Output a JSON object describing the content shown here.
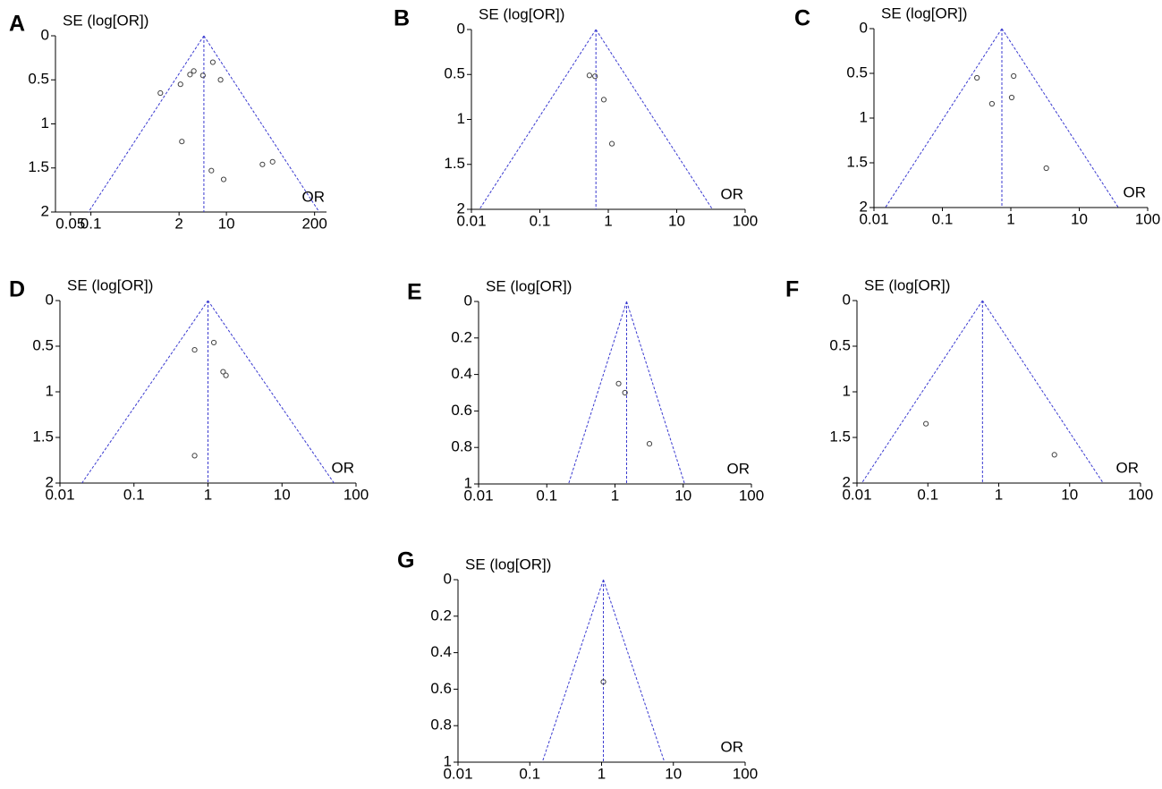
{
  "chart_data": [
    {
      "type": "funnel",
      "label": "A",
      "y_label": "SE (log[OR])",
      "x_label": "OR",
      "x": [
        1.06,
        2.1,
        2.2,
        2.9,
        3.3,
        4.5,
        6.3,
        8.2,
        6.0,
        9.1,
        34,
        48
      ],
      "y": [
        0.65,
        0.55,
        1.2,
        0.44,
        0.4,
        0.45,
        0.3,
        0.5,
        1.53,
        1.63,
        1.46,
        1.43
      ],
      "pooled": 4.65,
      "xlim": [
        0.03,
        300
      ],
      "ylim": [
        0,
        2
      ],
      "xticks": [
        0.05,
        0.1,
        2,
        10,
        200
      ],
      "yticks": [
        0,
        0.5,
        1,
        1.5,
        2
      ],
      "x_scale": "log",
      "y_reversed": true,
      "line_color": "#3a3ad0",
      "marker_color": "#444444"
    },
    {
      "type": "funnel",
      "label": "B",
      "y_label": "SE (log[OR])",
      "x_label": "OR",
      "x": [
        0.53,
        0.64,
        0.86,
        1.13
      ],
      "y": [
        0.51,
        0.52,
        0.78,
        1.27
      ],
      "pooled": 0.66,
      "xlim": [
        0.01,
        100
      ],
      "ylim": [
        0,
        2
      ],
      "xticks": [
        0.01,
        0.1,
        1,
        10,
        100
      ],
      "yticks": [
        0,
        0.5,
        1,
        1.5,
        2
      ],
      "x_scale": "log",
      "y_reversed": true,
      "line_color": "#3a3ad0",
      "marker_color": "#444444"
    },
    {
      "type": "funnel",
      "label": "C",
      "y_label": "SE (log[OR])",
      "x_label": "OR",
      "x": [
        0.32,
        1.1,
        0.53,
        1.03,
        3.3
      ],
      "y": [
        0.55,
        0.53,
        0.84,
        0.77,
        1.56
      ],
      "pooled": 0.74,
      "xlim": [
        0.01,
        100
      ],
      "ylim": [
        0,
        2
      ],
      "xticks": [
        0.01,
        0.1,
        1,
        10,
        100
      ],
      "yticks": [
        0,
        0.5,
        1,
        1.5,
        2
      ],
      "x_scale": "log",
      "y_reversed": true,
      "line_color": "#3a3ad0",
      "marker_color": "#444444"
    },
    {
      "type": "funnel",
      "label": "D",
      "y_label": "SE (log[OR])",
      "x_label": "OR",
      "x": [
        0.66,
        1.2,
        1.6,
        1.75,
        0.66
      ],
      "y": [
        0.54,
        0.46,
        0.78,
        0.82,
        1.7
      ],
      "pooled": 1.0,
      "xlim": [
        0.01,
        100
      ],
      "ylim": [
        0,
        2
      ],
      "xticks": [
        0.01,
        0.1,
        1,
        10,
        100
      ],
      "yticks": [
        0,
        0.5,
        1,
        1.5,
        2
      ],
      "x_scale": "log",
      "y_reversed": true,
      "line_color": "#3a3ad0",
      "marker_color": "#444444"
    },
    {
      "type": "funnel",
      "label": "E",
      "y_label": "SE (log[OR])",
      "x_label": "OR",
      "x": [
        1.13,
        1.4,
        3.2
      ],
      "y": [
        0.45,
        0.5,
        0.78
      ],
      "pooled": 1.48,
      "xlim": [
        0.01,
        100
      ],
      "ylim": [
        0,
        1
      ],
      "xticks": [
        0.01,
        0.1,
        1,
        10,
        100
      ],
      "yticks": [
        0,
        0.2,
        0.4,
        0.6,
        0.8,
        1
      ],
      "x_scale": "log",
      "y_reversed": true,
      "line_color": "#3a3ad0",
      "marker_color": "#444444"
    },
    {
      "type": "funnel",
      "label": "F",
      "y_label": "SE (log[OR])",
      "x_label": "OR",
      "x": [
        0.094,
        6.1
      ],
      "y": [
        1.35,
        1.69
      ],
      "pooled": 0.59,
      "xlim": [
        0.01,
        100
      ],
      "ylim": [
        0,
        2
      ],
      "xticks": [
        0.01,
        0.1,
        1,
        10,
        100
      ],
      "yticks": [
        0,
        0.5,
        1,
        1.5,
        2
      ],
      "x_scale": "log",
      "y_reversed": true,
      "line_color": "#3a3ad0",
      "marker_color": "#444444"
    },
    {
      "type": "funnel",
      "label": "G",
      "y_label": "SE (log[OR])",
      "x_label": "OR",
      "x": [
        1.06
      ],
      "y": [
        0.56
      ],
      "pooled": 1.06,
      "xlim": [
        0.01,
        100
      ],
      "ylim": [
        0,
        1
      ],
      "xticks": [
        0.01,
        0.1,
        1,
        10,
        100
      ],
      "yticks": [
        0,
        0.2,
        0.4,
        0.6,
        0.8,
        1
      ],
      "x_scale": "log",
      "y_reversed": true,
      "line_color": "#3a3ad0",
      "marker_color": "#444444"
    }
  ]
}
